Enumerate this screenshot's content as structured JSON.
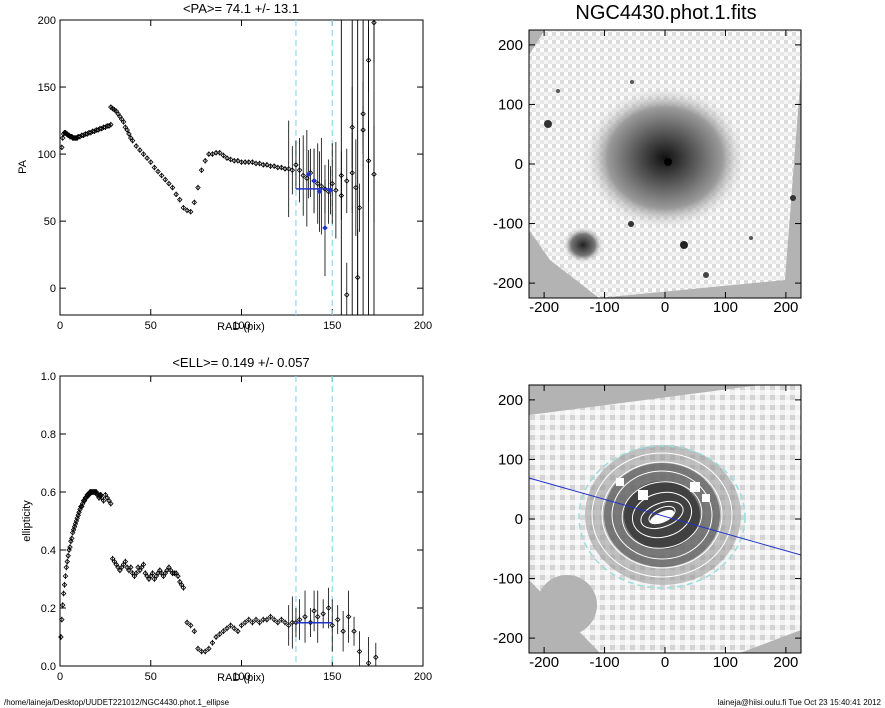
{
  "footer": {
    "left": "/home/laineja/Desktop/UUDET221012/NGC4430.phot.1_ellipse",
    "right": "laineja@hiisi.oulu.fi  Tue Oct 23 15:40:41 2012"
  },
  "chart_data": [
    {
      "id": "pa",
      "type": "scatter",
      "title": "<PA>=  74.1 +/-  13.1",
      "xlabel": "RAD (pix)",
      "ylabel": "PA",
      "xlim": [
        0,
        200
      ],
      "ylim": [
        -20,
        200
      ],
      "xticks": [
        0,
        50,
        100,
        150,
        200
      ],
      "yticks": [
        0,
        50,
        100,
        150,
        200
      ],
      "xtick_labels": [
        "0",
        "50",
        "100",
        "150",
        "200"
      ],
      "ytick_labels": [
        "0",
        "50",
        "100",
        "150",
        "200"
      ],
      "vlines": [
        130,
        150
      ],
      "mean_line": {
        "x": [
          130,
          150
        ],
        "y": 74.1
      },
      "series": [
        {
          "x": [
            1,
            1.5,
            2,
            2.5,
            3,
            3.5,
            4,
            4.5,
            5,
            5.5,
            6,
            6.5,
            7,
            7.5,
            8,
            8.5,
            9,
            9.5,
            10,
            11,
            12,
            13,
            14,
            15,
            16,
            17,
            18,
            19,
            20,
            21,
            22,
            23,
            24,
            25,
            26,
            27,
            28
          ],
          "y": [
            105,
            112,
            115,
            116,
            116,
            115,
            115,
            114,
            114,
            113,
            113,
            113,
            112,
            112,
            112,
            112,
            112,
            112,
            113,
            113,
            114,
            114,
            115,
            115,
            116,
            116,
            117,
            117,
            118,
            118,
            119,
            119,
            120,
            120,
            121,
            121,
            122
          ]
        },
        {
          "x": [
            28,
            29,
            30,
            31,
            32,
            33,
            34,
            35,
            36,
            37,
            38,
            39,
            40,
            42,
            44,
            46,
            48,
            50,
            52,
            54,
            56,
            58,
            60,
            62,
            64,
            66,
            68,
            70,
            72,
            74,
            76,
            78,
            80,
            82,
            84,
            86,
            88,
            90,
            92,
            94,
            96,
            98,
            100,
            102,
            104,
            106,
            108,
            110,
            112,
            114,
            116,
            118,
            120,
            122,
            124,
            126,
            128
          ],
          "y": [
            135,
            134,
            133,
            132,
            130,
            128,
            126,
            124,
            120,
            118,
            115,
            112,
            110,
            106,
            103,
            100,
            97,
            94,
            90,
            87,
            84,
            81,
            78,
            75,
            70,
            66,
            60,
            58,
            57,
            64,
            75,
            88,
            95,
            100,
            100,
            101,
            101,
            99,
            97,
            96,
            95,
            95,
            94,
            94,
            94,
            94,
            93,
            93,
            92,
            92,
            91,
            91,
            90,
            90,
            89,
            89,
            88
          ]
        },
        {
          "x": [
            130,
            132,
            134,
            136,
            138,
            140,
            142,
            144,
            146,
            148,
            150,
            152,
            155,
            158,
            161,
            163,
            165,
            167,
            170,
            173
          ],
          "y": [
            92,
            88,
            84,
            82,
            86,
            80,
            78,
            76,
            74,
            72,
            78,
            73,
            69,
            80,
            86,
            75,
            60,
            130,
            95,
            85
          ]
        },
        {
          "x": [
            137,
            140,
            143,
            146,
            149
          ],
          "y": [
            85,
            80,
            72,
            45,
            73
          ]
        },
        {
          "x": [
            155,
            158,
            161,
            164,
            167,
            170,
            173
          ],
          "y": [
            84,
            -5,
            120,
            8,
            118,
            170,
            198
          ]
        }
      ]
    },
    {
      "id": "ell",
      "type": "scatter",
      "title": "<ELL>= 0.149 +/-  0.057",
      "xlabel": "RAD (pix)",
      "ylabel": "ellipticity",
      "xlim": [
        0,
        200
      ],
      "ylim": [
        0,
        1
      ],
      "xticks": [
        0,
        50,
        100,
        150,
        200
      ],
      "yticks": [
        0,
        0.2,
        0.4,
        0.6,
        0.8,
        1.0
      ],
      "xtick_labels": [
        "0",
        "50",
        "100",
        "150",
        "200"
      ],
      "ytick_labels": [
        "0.0",
        "0.2",
        "0.4",
        "0.6",
        "0.8",
        "1.0"
      ],
      "vlines": [
        130,
        150
      ],
      "mean_line": {
        "x": [
          130,
          150
        ],
        "y": 0.149
      },
      "series": [
        {
          "x": [
            0.5,
            1,
            1.5,
            2,
            2.5,
            3,
            3.5,
            4,
            4.5,
            5,
            5.5,
            6,
            6.5,
            7,
            7.5,
            8,
            8.5,
            9,
            9.5,
            10,
            10.5,
            11,
            11.5,
            12,
            12.5,
            13,
            13.5,
            14,
            14.5,
            15,
            15.5,
            16,
            16.5,
            17,
            17.5,
            18,
            18.5,
            19,
            19.5,
            20,
            20.5,
            21,
            21.5,
            22,
            22.5,
            23,
            24,
            25,
            26,
            27,
            28
          ],
          "y": [
            0.1,
            0.16,
            0.21,
            0.25,
            0.28,
            0.31,
            0.34,
            0.36,
            0.38,
            0.4,
            0.41,
            0.43,
            0.44,
            0.46,
            0.47,
            0.48,
            0.49,
            0.5,
            0.51,
            0.52,
            0.53,
            0.54,
            0.55,
            0.55,
            0.56,
            0.57,
            0.57,
            0.58,
            0.58,
            0.59,
            0.59,
            0.59,
            0.6,
            0.6,
            0.6,
            0.6,
            0.6,
            0.6,
            0.6,
            0.6,
            0.59,
            0.59,
            0.58,
            0.59,
            0.59,
            0.58,
            0.57,
            0.59,
            0.58,
            0.57,
            0.56
          ]
        },
        {
          "x": [
            29,
            30,
            31,
            32,
            33,
            34,
            35,
            36,
            37,
            38,
            39,
            40,
            41,
            42,
            43,
            44,
            45,
            46,
            47,
            48,
            49,
            50,
            51,
            52,
            53,
            54,
            55,
            56,
            57,
            58,
            59,
            60,
            61,
            62,
            63,
            64,
            65,
            66,
            67,
            68
          ],
          "y": [
            0.37,
            0.36,
            0.35,
            0.34,
            0.33,
            0.34,
            0.35,
            0.36,
            0.34,
            0.33,
            0.34,
            0.32,
            0.31,
            0.32,
            0.34,
            0.33,
            0.34,
            0.35,
            0.32,
            0.31,
            0.3,
            0.31,
            0.32,
            0.3,
            0.31,
            0.32,
            0.33,
            0.32,
            0.31,
            0.32,
            0.33,
            0.34,
            0.33,
            0.32,
            0.32,
            0.32,
            0.31,
            0.29,
            0.28,
            0.27
          ]
        },
        {
          "x": [
            70,
            72,
            74,
            76,
            78,
            80,
            82,
            84,
            86,
            88,
            90,
            92,
            94,
            96,
            98,
            100,
            102,
            104,
            106,
            108,
            110,
            112,
            114,
            116,
            118,
            120,
            122,
            124,
            126,
            128
          ],
          "y": [
            0.15,
            0.14,
            0.12,
            0.06,
            0.05,
            0.05,
            0.06,
            0.08,
            0.1,
            0.11,
            0.12,
            0.13,
            0.14,
            0.13,
            0.12,
            0.14,
            0.15,
            0.16,
            0.15,
            0.16,
            0.15,
            0.16,
            0.16,
            0.17,
            0.16,
            0.15,
            0.16,
            0.15,
            0.14,
            0.15
          ]
        },
        {
          "x": [
            130,
            132,
            135,
            138,
            140,
            142,
            145,
            148,
            150,
            153,
            156,
            159,
            162,
            165,
            170,
            174
          ],
          "y": [
            0.15,
            0.16,
            0.17,
            0.15,
            0.19,
            0.17,
            0.18,
            0.2,
            0.14,
            0.16,
            0.12,
            0.17,
            0.12,
            0.05,
            0.01,
            0.03
          ]
        }
      ]
    }
  ],
  "images": [
    {
      "id": "raw",
      "title": "NGC4430.phot.1.fits",
      "xlim": [
        -225,
        225
      ],
      "ylim": [
        -225,
        225
      ],
      "xticks": [
        -200,
        -100,
        0,
        100,
        200
      ],
      "yticks": [
        -200,
        -100,
        0,
        100,
        200
      ],
      "xtick_labels": [
        "-200",
        "-100",
        "0",
        "100",
        "200"
      ],
      "ytick_labels": [
        "-200",
        "-100",
        "0",
        "100",
        "200"
      ]
    },
    {
      "id": "model",
      "title": "",
      "xlim": [
        -225,
        225
      ],
      "ylim": [
        -225,
        225
      ],
      "xticks": [
        -200,
        -100,
        0,
        100,
        200
      ],
      "yticks": [
        -200,
        -100,
        0,
        100,
        200
      ],
      "xtick_labels": [
        "-200",
        "-100",
        "0",
        "100",
        "200"
      ],
      "ytick_labels": [
        "-200",
        "-100",
        "0",
        "100",
        "200"
      ],
      "colors": {
        "ellipse": "#99dddd",
        "pa_line": "#2233cc"
      }
    }
  ]
}
